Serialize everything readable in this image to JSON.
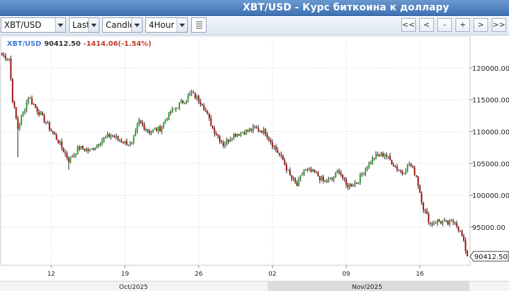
{
  "header": {
    "title": "XBT/USD - Курс биткоина к доллару"
  },
  "toolbar": {
    "symbol": "XBT/USD",
    "price_field": "Last",
    "chart_style": "Candle",
    "interval": "4Hour",
    "nav": [
      "<<",
      "<",
      "-",
      "+",
      ">",
      ">>"
    ]
  },
  "legend": {
    "symbol": "XBT/USD",
    "last": "90412.50",
    "change": "-1414.06(-1.54%)"
  },
  "colors": {
    "up": "#2ea02e",
    "down": "#a01010",
    "grid": "#e3e3e3",
    "title_bg": "#4a7fc1"
  },
  "chart_data": {
    "type": "candlestick",
    "symbol": "XBT/USD",
    "interval": "4Hour",
    "ylim": [
      89000,
      125000
    ],
    "y_ticks": [
      95000,
      100000,
      105000,
      110000,
      115000,
      120000
    ],
    "y_tick_labels": [
      "95000.00",
      "100000.00",
      "105000.00",
      "110000.00",
      "115000.00",
      "120000.00"
    ],
    "x_tick_labels": [
      "12",
      "19",
      "26",
      "02",
      "09",
      "16"
    ],
    "month_labels": [
      "Oct/2025",
      "Nov/2025"
    ],
    "last_price": 90412.5,
    "last_price_label": "90412.50",
    "key_closes": [
      {
        "x": 0,
        "close": 122000
      },
      {
        "x": 4,
        "close": 121500
      },
      {
        "x": 6,
        "close": 115000
      },
      {
        "x": 9,
        "close": 110500
      },
      {
        "x": 15,
        "close": 115500
      },
      {
        "x": 21,
        "close": 113000
      },
      {
        "x": 26,
        "close": 111000
      },
      {
        "x": 32,
        "close": 108500
      },
      {
        "x": 38,
        "close": 105500
      },
      {
        "x": 44,
        "close": 107500
      },
      {
        "x": 50,
        "close": 107000
      },
      {
        "x": 56,
        "close": 108500
      },
      {
        "x": 62,
        "close": 109500
      },
      {
        "x": 68,
        "close": 108500
      },
      {
        "x": 74,
        "close": 108000
      },
      {
        "x": 78,
        "close": 111500
      },
      {
        "x": 84,
        "close": 110000
      },
      {
        "x": 90,
        "close": 110500
      },
      {
        "x": 96,
        "close": 113000
      },
      {
        "x": 102,
        "close": 114500
      },
      {
        "x": 108,
        "close": 116000
      },
      {
        "x": 114,
        "close": 114500
      },
      {
        "x": 120,
        "close": 110500
      },
      {
        "x": 126,
        "close": 108000
      },
      {
        "x": 132,
        "close": 109500
      },
      {
        "x": 138,
        "close": 110000
      },
      {
        "x": 144,
        "close": 110500
      },
      {
        "x": 150,
        "close": 110000
      },
      {
        "x": 154,
        "close": 108000
      },
      {
        "x": 160,
        "close": 105500
      },
      {
        "x": 164,
        "close": 103000
      },
      {
        "x": 168,
        "close": 101500
      },
      {
        "x": 172,
        "close": 104000
      },
      {
        "x": 178,
        "close": 103500
      },
      {
        "x": 184,
        "close": 102000
      },
      {
        "x": 188,
        "close": 102500
      },
      {
        "x": 192,
        "close": 104000
      },
      {
        "x": 196,
        "close": 101500
      },
      {
        "x": 202,
        "close": 102000
      },
      {
        "x": 208,
        "close": 104500
      },
      {
        "x": 212,
        "close": 106000
      },
      {
        "x": 218,
        "close": 106500
      },
      {
        "x": 224,
        "close": 104500
      },
      {
        "x": 228,
        "close": 103500
      },
      {
        "x": 232,
        "close": 105000
      },
      {
        "x": 236,
        "close": 103000
      },
      {
        "x": 240,
        "close": 98000
      },
      {
        "x": 244,
        "close": 95500
      },
      {
        "x": 248,
        "close": 96000
      },
      {
        "x": 254,
        "close": 95500
      },
      {
        "x": 258,
        "close": 96000
      },
      {
        "x": 262,
        "close": 93500
      },
      {
        "x": 265,
        "close": 90412.5
      }
    ]
  }
}
